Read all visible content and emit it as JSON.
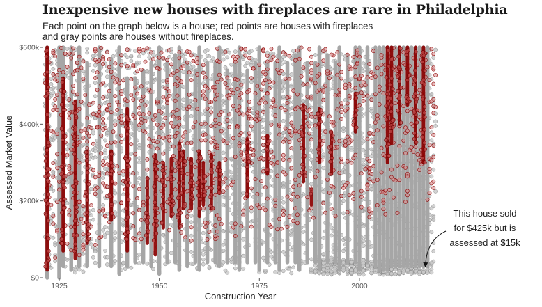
{
  "chart_data": {
    "type": "scatter",
    "title": "Inexpensive new houses with fireplaces are rare in Philadelphia",
    "subtitle_lines": [
      "Each point on the graph below is a house; red points are houses with fireplaces",
      "and gray points are houses without fireplaces."
    ],
    "xlabel": "Construction Year",
    "ylabel": "Assessed Market Value",
    "xlim": [
      1921,
      2019.5
    ],
    "ylim": [
      0,
      600000
    ],
    "x_ticks": [
      {
        "value": 1925,
        "label": "1925"
      },
      {
        "value": 1950,
        "label": "1950"
      },
      {
        "value": 1975,
        "label": "1975"
      },
      {
        "value": 2000,
        "label": "2000"
      }
    ],
    "y_ticks": [
      {
        "value": 0,
        "label": "$0"
      },
      {
        "value": 200000,
        "label": "$200k"
      },
      {
        "value": 400000,
        "label": "$400k"
      },
      {
        "value": 600000,
        "label": "$600k"
      }
    ],
    "grid": false,
    "series": [
      {
        "key": "no_fireplace",
        "color": "#9e9e9e",
        "dense_ranges": [
          {
            "x": 1922,
            "y": [
              0,
              600000
            ]
          },
          {
            "x": 1925,
            "y": [
              0,
              600000
            ]
          },
          {
            "x": 1926,
            "y": [
              30000,
              600000
            ]
          },
          {
            "x": 1928,
            "y": [
              20000,
              600000
            ]
          },
          {
            "x": 1930,
            "y": [
              30000,
              600000
            ]
          },
          {
            "x": 1932,
            "y": [
              30000,
              560000
            ]
          },
          {
            "x": 1935,
            "y": [
              30000,
              600000
            ]
          },
          {
            "x": 1938,
            "y": [
              30000,
              570000
            ]
          },
          {
            "x": 1940,
            "y": [
              10000,
              600000
            ]
          },
          {
            "x": 1942,
            "y": [
              30000,
              520000
            ]
          },
          {
            "x": 1944,
            "y": [
              40000,
              520000
            ]
          },
          {
            "x": 1946,
            "y": [
              40000,
              540000
            ]
          },
          {
            "x": 1948,
            "y": [
              30000,
              560000
            ]
          },
          {
            "x": 1950,
            "y": [
              10000,
              600000
            ]
          },
          {
            "x": 1952,
            "y": [
              40000,
              560000
            ]
          },
          {
            "x": 1954,
            "y": [
              40000,
              580000
            ]
          },
          {
            "x": 1955,
            "y": [
              20000,
              600000
            ]
          },
          {
            "x": 1957,
            "y": [
              30000,
              560000
            ]
          },
          {
            "x": 1959,
            "y": [
              40000,
              540000
            ]
          },
          {
            "x": 1960,
            "y": [
              20000,
              600000
            ]
          },
          {
            "x": 1962,
            "y": [
              40000,
              560000
            ]
          },
          {
            "x": 1964,
            "y": [
              40000,
              560000
            ]
          },
          {
            "x": 1965,
            "y": [
              30000,
              600000
            ]
          },
          {
            "x": 1967,
            "y": [
              40000,
              540000
            ]
          },
          {
            "x": 1969,
            "y": [
              40000,
              560000
            ]
          },
          {
            "x": 1970,
            "y": [
              20000,
              600000
            ]
          },
          {
            "x": 1972,
            "y": [
              40000,
              540000
            ]
          },
          {
            "x": 1974,
            "y": [
              40000,
              560000
            ]
          },
          {
            "x": 1975,
            "y": [
              20000,
              600000
            ]
          },
          {
            "x": 1977,
            "y": [
              40000,
              560000
            ]
          },
          {
            "x": 1979,
            "y": [
              40000,
              560000
            ]
          },
          {
            "x": 1980,
            "y": [
              20000,
              600000
            ]
          },
          {
            "x": 1982,
            "y": [
              40000,
              560000
            ]
          },
          {
            "x": 1984,
            "y": [
              40000,
              580000
            ]
          },
          {
            "x": 1985,
            "y": [
              20000,
              600000
            ]
          },
          {
            "x": 1987,
            "y": [
              40000,
              560000
            ]
          },
          {
            "x": 1989,
            "y": [
              40000,
              560000
            ]
          },
          {
            "x": 1990,
            "y": [
              20000,
              600000
            ]
          },
          {
            "x": 1992,
            "y": [
              40000,
              580000
            ]
          },
          {
            "x": 1994,
            "y": [
              40000,
              560000
            ]
          },
          {
            "x": 1995,
            "y": [
              20000,
              600000
            ]
          },
          {
            "x": 1997,
            "y": [
              40000,
              580000
            ]
          },
          {
            "x": 1999,
            "y": [
              40000,
              600000
            ]
          },
          {
            "x": 2000,
            "y": [
              20000,
              600000
            ]
          },
          {
            "x": 2002,
            "y": [
              40000,
              600000
            ]
          },
          {
            "x": 2004,
            "y": [
              30000,
              600000
            ]
          },
          {
            "x": 2005,
            "y": [
              20000,
              600000
            ]
          },
          {
            "x": 2006,
            "y": [
              20000,
              600000
            ]
          },
          {
            "x": 2007,
            "y": [
              20000,
              600000
            ]
          },
          {
            "x": 2008,
            "y": [
              30000,
              600000
            ]
          },
          {
            "x": 2009,
            "y": [
              30000,
              600000
            ]
          },
          {
            "x": 2010,
            "y": [
              30000,
              600000
            ]
          },
          {
            "x": 2011,
            "y": [
              30000,
              600000
            ]
          },
          {
            "x": 2012,
            "y": [
              30000,
              600000
            ]
          },
          {
            "x": 2013,
            "y": [
              30000,
              600000
            ]
          },
          {
            "x": 2014,
            "y": [
              30000,
              600000
            ]
          },
          {
            "x": 2015,
            "y": [
              30000,
              600000
            ]
          },
          {
            "x": 2016,
            "y": [
              30000,
              600000
            ]
          },
          {
            "x": 2017,
            "y": [
              30000,
              600000
            ]
          }
        ]
      },
      {
        "key": "fireplace",
        "color": "#8b0000",
        "dense_ranges": [
          {
            "x": 1922,
            "y": [
              20000,
              600000
            ]
          },
          {
            "x": 1926,
            "y": [
              70000,
              520000
            ]
          },
          {
            "x": 1929,
            "y": [
              50000,
              460000
            ]
          },
          {
            "x": 1932,
            "y": [
              90000,
              330000
            ]
          },
          {
            "x": 1938,
            "y": [
              150000,
              330000
            ]
          },
          {
            "x": 1942,
            "y": [
              70000,
              440000
            ]
          },
          {
            "x": 1947,
            "y": [
              90000,
              260000
            ]
          },
          {
            "x": 1949,
            "y": [
              60000,
              320000
            ]
          },
          {
            "x": 1951,
            "y": [
              130000,
              300000
            ]
          },
          {
            "x": 1953,
            "y": [
              160000,
              310000
            ]
          },
          {
            "x": 1955,
            "y": [
              130000,
              350000
            ]
          },
          {
            "x": 1956,
            "y": [
              180000,
              330000
            ]
          },
          {
            "x": 1958,
            "y": [
              180000,
              310000
            ]
          },
          {
            "x": 1960,
            "y": [
              160000,
              330000
            ]
          },
          {
            "x": 1961,
            "y": [
              190000,
              300000
            ]
          },
          {
            "x": 1963,
            "y": [
              180000,
              320000
            ]
          },
          {
            "x": 1965,
            "y": [
              220000,
              300000
            ]
          },
          {
            "x": 1972,
            "y": [
              210000,
              360000
            ]
          },
          {
            "x": 1977,
            "y": [
              270000,
              370000
            ]
          },
          {
            "x": 1986,
            "y": [
              250000,
              450000
            ]
          },
          {
            "x": 1988,
            "y": [
              190000,
              230000
            ]
          },
          {
            "x": 1990,
            "y": [
              300000,
              440000
            ]
          },
          {
            "x": 1993,
            "y": [
              270000,
              380000
            ]
          },
          {
            "x": 1999,
            "y": [
              380000,
              480000
            ]
          },
          {
            "x": 2007,
            "y": [
              300000,
              600000
            ]
          },
          {
            "x": 2008,
            "y": [
              350000,
              600000
            ]
          },
          {
            "x": 2010,
            "y": [
              400000,
              600000
            ]
          },
          {
            "x": 2012,
            "y": [
              450000,
              600000
            ]
          },
          {
            "x": 2014,
            "y": [
              350000,
              600000
            ]
          },
          {
            "x": 2016,
            "y": [
              300000,
              600000
            ]
          }
        ]
      }
    ],
    "annotation": {
      "lines": [
        "This house sold",
        "for $425k but is",
        "assessed at $15k"
      ],
      "point": {
        "x": 2017,
        "y": 15000
      }
    }
  }
}
